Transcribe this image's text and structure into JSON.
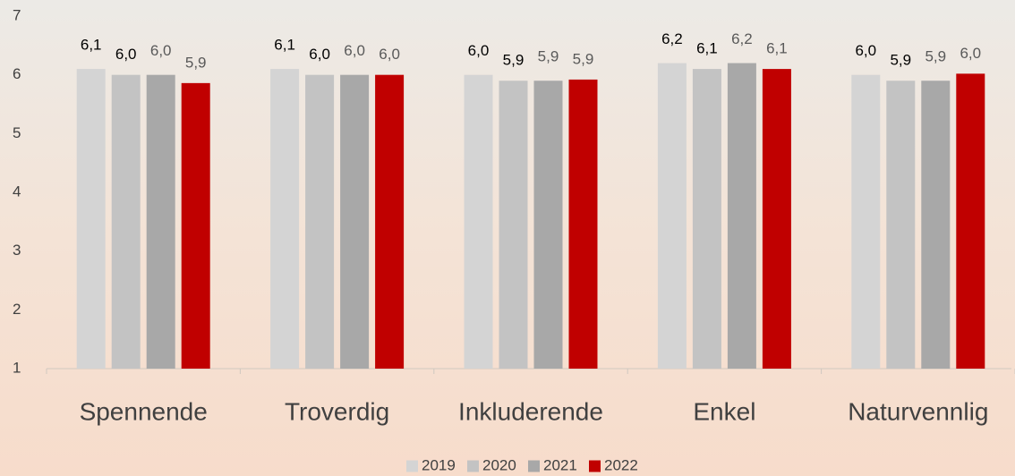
{
  "chart_data": {
    "type": "bar",
    "categories": [
      "Spennende",
      "Troverdig",
      "Inkluderende",
      "Enkel",
      "Naturvennlig"
    ],
    "series": [
      {
        "name": "2019",
        "color": "#d4d4d4",
        "values": [
          6.1,
          6.1,
          6.0,
          6.2,
          6.0
        ],
        "value_labels": [
          "6,1",
          "6,1",
          "6,0",
          "6,2",
          "6,0"
        ]
      },
      {
        "name": "2020",
        "color": "#c3c3c3",
        "values": [
          6.0,
          6.0,
          5.9,
          6.1,
          5.9
        ],
        "value_labels": [
          "6,0",
          "6,0",
          "5,9",
          "6,1",
          "5,9"
        ]
      },
      {
        "name": "2021",
        "color": "#a8a8a8",
        "values": [
          6.0,
          6.0,
          5.9,
          6.2,
          5.9
        ],
        "value_labels": [
          "6,0",
          "6,0",
          "5,9",
          "6,2",
          "5,9"
        ]
      },
      {
        "name": "2022",
        "color": "#c00000",
        "values": [
          5.86,
          6.0,
          5.92,
          6.1,
          6.02
        ],
        "value_labels": [
          "5,9",
          "6,0",
          "5,9",
          "6,1",
          "6,0"
        ]
      }
    ],
    "ylim": [
      1,
      7
    ],
    "yticks": [
      1,
      2,
      3,
      4,
      5,
      6,
      7
    ],
    "grid": false,
    "legend": "bottom"
  }
}
